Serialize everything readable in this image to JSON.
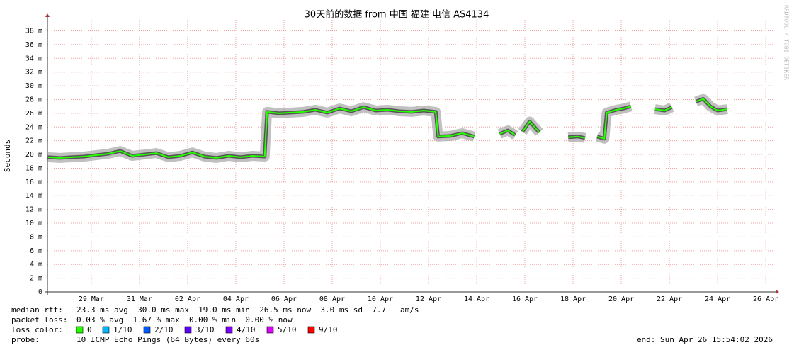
{
  "chart_data": {
    "type": "line",
    "title": "30天前的数据 from 中国 福建 电信 AS4134",
    "y_label": "Seconds",
    "watermark": "RRDTOOL / TOBI OETIKER",
    "xlim": [
      0.18,
      30.35
    ],
    "xticks": [
      {
        "value": 2,
        "label": "29 Mar"
      },
      {
        "value": 4,
        "label": "31 Mar"
      },
      {
        "value": 6,
        "label": "02 Apr"
      },
      {
        "value": 8,
        "label": "04 Apr"
      },
      {
        "value": 10,
        "label": "06 Apr"
      },
      {
        "value": 12,
        "label": "08 Apr"
      },
      {
        "value": 14,
        "label": "10 Apr"
      },
      {
        "value": 16,
        "label": "12 Apr"
      },
      {
        "value": 18,
        "label": "14 Apr"
      },
      {
        "value": 20,
        "label": "16 Apr"
      },
      {
        "value": 22,
        "label": "18 Apr"
      },
      {
        "value": 24,
        "label": "20 Apr"
      },
      {
        "value": 26,
        "label": "22 Apr"
      },
      {
        "value": 28,
        "label": "24 Apr"
      },
      {
        "value": 30,
        "label": "26 Apr"
      }
    ],
    "ylim": [
      0,
      39.6
    ],
    "yticks": [
      0,
      {
        "value": 2,
        "label": "2 m"
      },
      {
        "value": 4,
        "label": "4 m"
      },
      {
        "value": 6,
        "label": "6 m"
      },
      {
        "value": 8,
        "label": "8 m"
      },
      {
        "value": 10,
        "label": "10 m"
      },
      {
        "value": 12,
        "label": "12 m"
      },
      {
        "value": 14,
        "label": "14 m"
      },
      {
        "value": 16,
        "label": "16 m"
      },
      {
        "value": 18,
        "label": "18 m"
      },
      {
        "value": 20,
        "label": "20 m"
      },
      {
        "value": 22,
        "label": "22 m"
      },
      {
        "value": 24,
        "label": "24 m"
      },
      {
        "value": 26,
        "label": "26 m"
      },
      {
        "value": 28,
        "label": "28 m"
      },
      {
        "value": 30,
        "label": "30 m"
      },
      {
        "value": 32,
        "label": "32 m"
      },
      {
        "value": 34,
        "label": "34 m"
      },
      {
        "value": 36,
        "label": "36 m"
      },
      {
        "value": 38,
        "label": "38 m"
      }
    ],
    "grid": true,
    "x": [
      0.2,
      0.7,
      1.2,
      1.7,
      2.2,
      2.7,
      3.2,
      3.7,
      4.2,
      4.7,
      5.2,
      5.7,
      6.2,
      6.7,
      7.2,
      7.7,
      8.2,
      8.7,
      9.2,
      9.3,
      9.8,
      10.3,
      10.8,
      11.3,
      11.8,
      12.3,
      12.8,
      13.3,
      13.8,
      14.3,
      14.8,
      15.3,
      15.8,
      16.3,
      16.4,
      16.9,
      17.4,
      17.9,
      18.4,
      18.95,
      19.3,
      19.6,
      19.75,
      19.9,
      20.2,
      20.6,
      21.2,
      21.8,
      22.2,
      22.5,
      22.75,
      23.0,
      23.3,
      23.4,
      23.8,
      24.1,
      24.4,
      24.9,
      25.4,
      25.8,
      26.1,
      26.6,
      27.1,
      27.4,
      27.7,
      28.0,
      28.4
    ],
    "series": [
      {
        "color": "#26ff00",
        "values": [
          19.6,
          19.5,
          19.6,
          19.7,
          19.9,
          20.1,
          20.5,
          19.8,
          20.0,
          20.2,
          19.6,
          19.8,
          20.3,
          19.7,
          19.5,
          19.8,
          19.6,
          19.8,
          19.7,
          26.2,
          26.0,
          26.1,
          26.2,
          26.5,
          26.1,
          26.7,
          26.3,
          26.9,
          26.4,
          26.5,
          26.3,
          26.2,
          26.4,
          26.2,
          22.6,
          22.7,
          23.1,
          22.6,
          null,
          23.0,
          23.5,
          22.8,
          null,
          23.3,
          24.8,
          23.2,
          null,
          22.5,
          22.6,
          22.4,
          null,
          22.6,
          22.3,
          26.1,
          26.5,
          26.7,
          27.0,
          null,
          26.6,
          26.4,
          26.9,
          null,
          27.7,
          28.1,
          27.0,
          26.4,
          26.6
        ]
      }
    ],
    "stats": [
      {
        "label": "median rtt:",
        "text": "23.3 ms avg  30.0 ms max  19.0 ms min  26.5 ms now  3.0 ms sd  7.7   am/s"
      },
      {
        "label": "packet loss:",
        "text": "0.03 % avg  1.67 % max  0.00 % min  0.00 % now"
      }
    ],
    "loss_color": {
      "label": "loss color:",
      "items": [
        {
          "label": "0",
          "color": "#26ff00"
        },
        {
          "label": "1/10",
          "color": "#00b8ff"
        },
        {
          "label": "2/10",
          "color": "#0059ff"
        },
        {
          "label": "3/10",
          "color": "#5e00ff"
        },
        {
          "label": "4/10",
          "color": "#7e00ff"
        },
        {
          "label": "5/10",
          "color": "#dd00ff"
        },
        {
          "label": "9/10",
          "color": "#ff0000"
        }
      ]
    },
    "probe": {
      "label": "probe:",
      "text": "10 ICMP Echo Pings (64 Bytes) every 60s"
    },
    "end": "end: Sun Apr 26 15:54:02 2026"
  }
}
